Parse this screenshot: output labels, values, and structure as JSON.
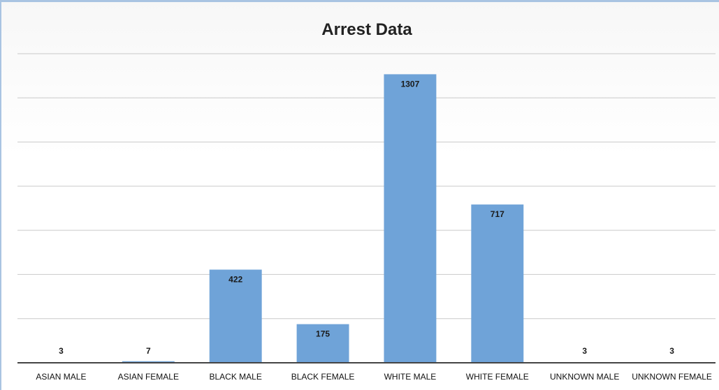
{
  "chart_data": {
    "type": "bar",
    "title": "Arrest Data",
    "categories": [
      "ASIAN MALE",
      "ASIAN FEMALE",
      "BLACK MALE",
      "BLACK FEMALE",
      "WHITE MALE",
      "WHITE FEMALE",
      "UNKNOWN MALE",
      "UNKNOWN FEMALE"
    ],
    "values": [
      3,
      7,
      422,
      175,
      1307,
      717,
      3,
      3
    ],
    "data_labels": [
      "3",
      "7",
      "422",
      "175",
      "1307",
      "717",
      "3",
      "3"
    ],
    "ylim": [
      0,
      1400
    ],
    "grid": true,
    "bar_color": "#6fa3d8",
    "axis_color": "#444444",
    "gridline_color": "#c9c9c9"
  }
}
